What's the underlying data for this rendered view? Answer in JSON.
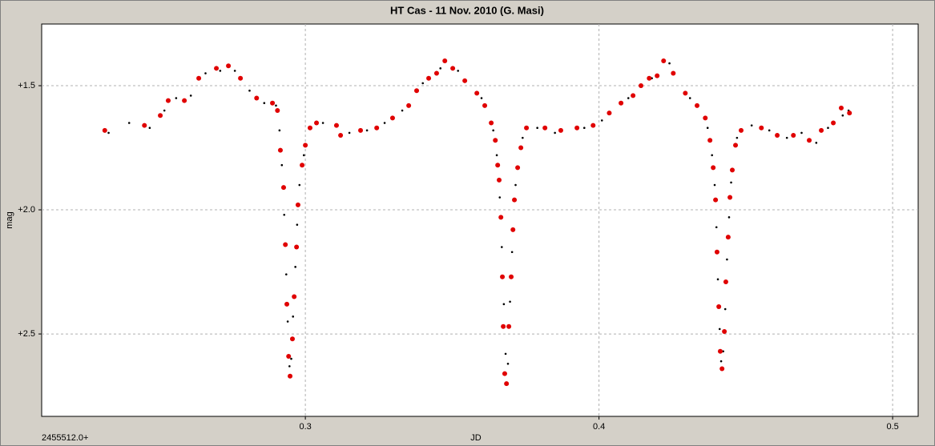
{
  "chart_data": {
    "type": "scatter",
    "title": "HT Cas - 11 Nov. 2010 (G. Masi)",
    "x_label": "JD",
    "x_offset_label": "2455512.0+",
    "y_label": "mag",
    "xlim": [
      0.2102,
      0.5087
    ],
    "xticks": [
      0.3,
      0.4,
      0.5
    ],
    "ylim": [
      1.2516,
      2.832
    ],
    "y_inverted": true,
    "yticks": [
      {
        "value": 1.5,
        "label": "+1.5"
      },
      {
        "value": 2.0,
        "label": "+2.0"
      },
      {
        "value": 2.5,
        "label": "+2.5"
      }
    ],
    "grid": true,
    "series": [
      {
        "color": "#000000",
        "x": [
          0.233,
          0.24,
          0.247,
          0.252,
          0.256,
          0.261,
          0.266,
          0.271,
          0.276,
          0.281,
          0.286,
          0.29,
          0.2912,
          0.292,
          0.2928,
          0.2935,
          0.294,
          0.2946,
          0.2952,
          0.2958,
          0.2966,
          0.2972,
          0.298,
          0.2995,
          0.306,
          0.315,
          0.321,
          0.327,
          0.333,
          0.34,
          0.346,
          0.352,
          0.36,
          0.364,
          0.3652,
          0.3662,
          0.3669,
          0.3676,
          0.3682,
          0.369,
          0.3697,
          0.3704,
          0.3716,
          0.374,
          0.379,
          0.385,
          0.395,
          0.401,
          0.41,
          0.418,
          0.424,
          0.431,
          0.437,
          0.4385,
          0.4394,
          0.44,
          0.4405,
          0.4411,
          0.4416,
          0.4423,
          0.443,
          0.4436,
          0.4443,
          0.445,
          0.447,
          0.452,
          0.458,
          0.464,
          0.469,
          0.474,
          0.478,
          0.483,
          0.485
        ],
        "values": [
          1.69,
          1.65,
          1.67,
          1.6,
          1.55,
          1.54,
          1.45,
          1.44,
          1.44,
          1.52,
          1.57,
          1.58,
          1.68,
          1.82,
          2.02,
          2.26,
          2.45,
          2.63,
          2.6,
          2.43,
          2.23,
          2.06,
          1.9,
          1.78,
          1.65,
          1.69,
          1.68,
          1.65,
          1.6,
          1.49,
          1.43,
          1.44,
          1.55,
          1.68,
          1.78,
          1.95,
          2.15,
          2.38,
          2.58,
          2.62,
          2.37,
          2.17,
          1.9,
          1.71,
          1.67,
          1.69,
          1.67,
          1.64,
          1.55,
          1.47,
          1.41,
          1.55,
          1.67,
          1.78,
          1.9,
          2.07,
          2.28,
          2.48,
          2.61,
          2.57,
          2.4,
          2.2,
          2.03,
          1.89,
          1.71,
          1.66,
          1.68,
          1.71,
          1.69,
          1.73,
          1.67,
          1.62,
          1.6
        ]
      },
      {
        "color": "#e00000",
        "x": [
          0.2317,
          0.2452,
          0.2506,
          0.2533,
          0.2588,
          0.2637,
          0.2697,
          0.2738,
          0.2779,
          0.2834,
          0.2888,
          0.2905,
          0.2915,
          0.2926,
          0.2932,
          0.2937,
          0.2943,
          0.2948,
          0.2956,
          0.2962,
          0.297,
          0.2975,
          0.2989,
          0.3,
          0.3016,
          0.3038,
          0.3106,
          0.312,
          0.3188,
          0.3243,
          0.3297,
          0.3352,
          0.3379,
          0.342,
          0.3447,
          0.3475,
          0.3502,
          0.3543,
          0.3584,
          0.3611,
          0.3633,
          0.3647,
          0.3655,
          0.366,
          0.3666,
          0.3671,
          0.3674,
          0.3679,
          0.3685,
          0.3693,
          0.3701,
          0.3707,
          0.3712,
          0.3723,
          0.3734,
          0.3753,
          0.3816,
          0.387,
          0.3925,
          0.398,
          0.4035,
          0.4075,
          0.4116,
          0.4143,
          0.4171,
          0.4198,
          0.422,
          0.4253,
          0.4294,
          0.4334,
          0.4362,
          0.4378,
          0.4389,
          0.4397,
          0.4402,
          0.4408,
          0.4413,
          0.4419,
          0.4427,
          0.4432,
          0.444,
          0.4446,
          0.4454,
          0.4465,
          0.4484,
          0.4553,
          0.4607,
          0.4662,
          0.4716,
          0.4757,
          0.4798,
          0.4825,
          0.4853
        ],
        "values": [
          1.68,
          1.66,
          1.62,
          1.56,
          1.56,
          1.47,
          1.43,
          1.42,
          1.47,
          1.55,
          1.57,
          1.6,
          1.76,
          1.91,
          2.14,
          2.38,
          2.59,
          2.67,
          2.52,
          2.35,
          2.15,
          1.98,
          1.82,
          1.74,
          1.67,
          1.65,
          1.66,
          1.7,
          1.68,
          1.67,
          1.63,
          1.58,
          1.52,
          1.47,
          1.45,
          1.4,
          1.43,
          1.48,
          1.53,
          1.58,
          1.65,
          1.72,
          1.82,
          1.88,
          2.03,
          2.27,
          2.47,
          2.66,
          2.7,
          2.47,
          2.27,
          2.08,
          1.96,
          1.83,
          1.75,
          1.67,
          1.67,
          1.68,
          1.67,
          1.66,
          1.61,
          1.57,
          1.54,
          1.5,
          1.47,
          1.46,
          1.4,
          1.45,
          1.53,
          1.58,
          1.63,
          1.72,
          1.83,
          1.96,
          2.17,
          2.39,
          2.57,
          2.64,
          2.49,
          2.29,
          2.11,
          1.95,
          1.84,
          1.74,
          1.68,
          1.67,
          1.7,
          1.7,
          1.72,
          1.68,
          1.65,
          1.59,
          1.61
        ]
      }
    ]
  }
}
